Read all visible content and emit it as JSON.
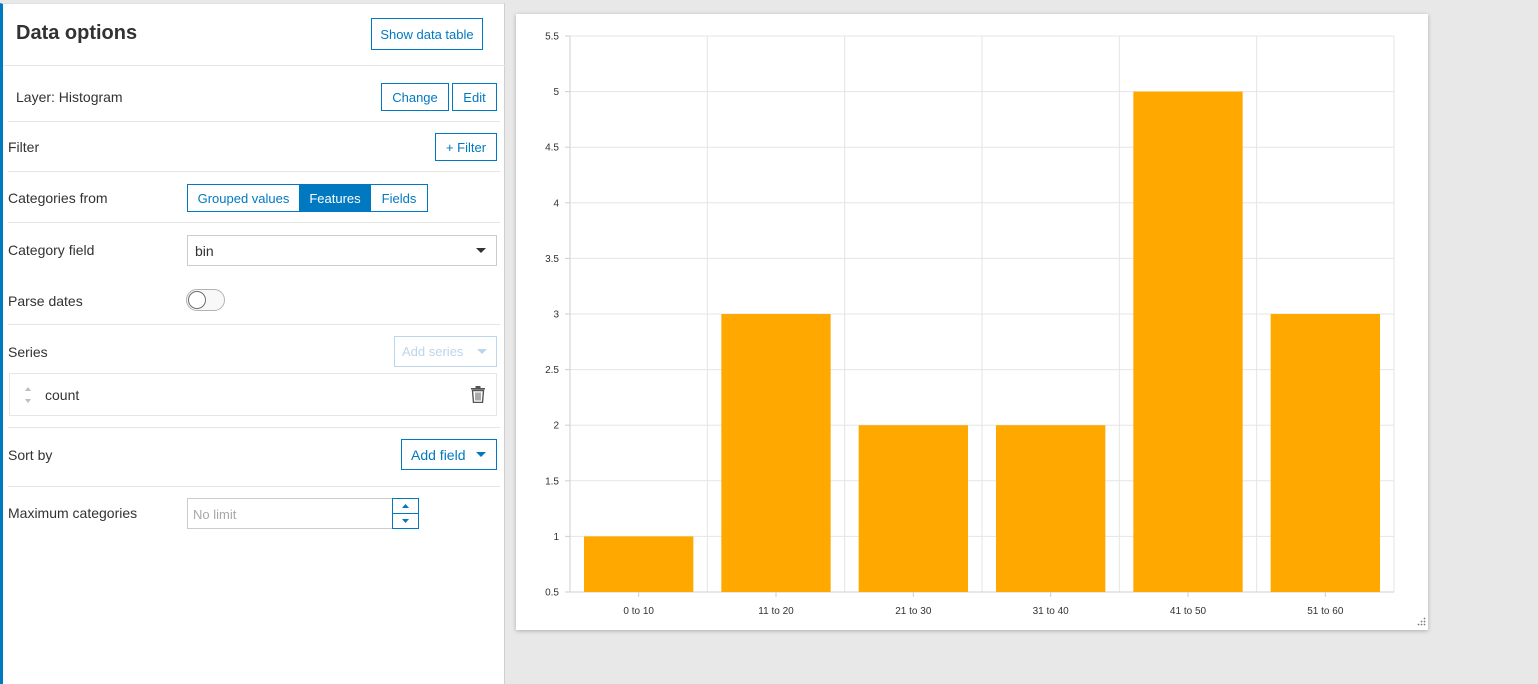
{
  "panel": {
    "title": "Data options",
    "show_data_table": "Show data table",
    "layer_label": "Layer: Histogram",
    "change": "Change",
    "edit": "Edit",
    "filter_label": "Filter",
    "add_filter": "+ Filter",
    "categories_from_label": "Categories from",
    "categories_tabs": [
      "Grouped values",
      "Features",
      "Fields"
    ],
    "categories_selected": "Features",
    "category_field_label": "Category field",
    "category_field_value": "bin",
    "parse_dates_label": "Parse dates",
    "series_label": "Series",
    "add_series": "Add series",
    "series_items": [
      "count"
    ],
    "sort_by_label": "Sort by",
    "add_field": "Add field",
    "max_categories_label": "Maximum categories",
    "max_categories_placeholder": "No limit"
  },
  "colors": {
    "accent": "#0079c1",
    "bar": "#ffa900"
  },
  "chart_data": {
    "type": "bar",
    "categories": [
      "0 to 10",
      "11 to 20",
      "21 to 30",
      "31 to 40",
      "41 to 50",
      "51 to 60"
    ],
    "values": [
      1,
      3,
      2,
      2,
      5,
      3
    ],
    "ylim": [
      0.5,
      5.5
    ],
    "yticks": [
      "0.5",
      "1",
      "1.5",
      "2",
      "2.5",
      "3",
      "3.5",
      "4",
      "4.5",
      "5",
      "5.5"
    ],
    "grid": true,
    "title": "",
    "xlabel": "",
    "ylabel": ""
  }
}
